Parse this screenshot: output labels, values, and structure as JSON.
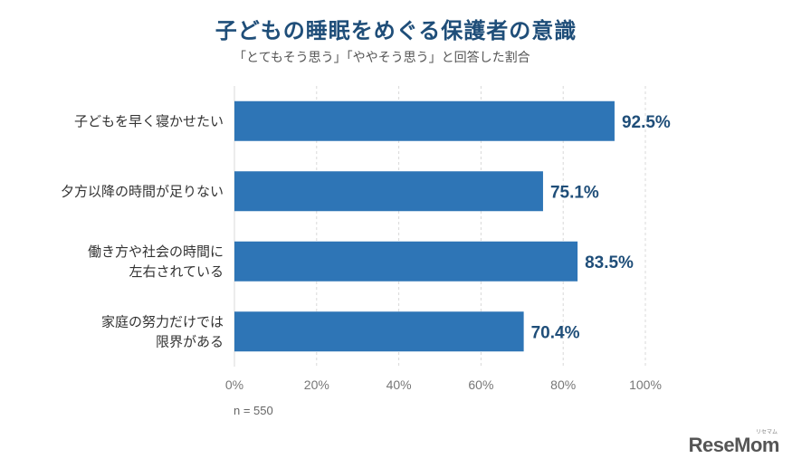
{
  "title": "子どもの睡眠をめぐる保護者の意識",
  "subtitle": "「とてもそう思う」「ややそう思う」と回答した割合",
  "note": "n = 550",
  "logo": {
    "text": "ReseMom",
    "sub": "リセマム"
  },
  "colors": {
    "bar": "#2e75b6",
    "value_label": "#1f4e79",
    "grid": "#d9d9d9"
  },
  "chart_data": {
    "type": "bar",
    "orientation": "horizontal",
    "categories": [
      [
        "子どもを早く寝かせたい"
      ],
      [
        "夕方以降の時間が足りない"
      ],
      [
        "働き方や社会の時間に",
        "左右されている"
      ],
      [
        "家庭の努力だけでは",
        "限界がある"
      ]
    ],
    "values": [
      92.5,
      75.1,
      83.5,
      70.4
    ],
    "value_labels": [
      "92.5%",
      "75.1%",
      "83.5%",
      "70.4%"
    ],
    "xlim": [
      0,
      100
    ],
    "xticks": [
      "0%",
      "20%",
      "40%",
      "60%",
      "80%",
      "100%"
    ],
    "grid": true
  }
}
